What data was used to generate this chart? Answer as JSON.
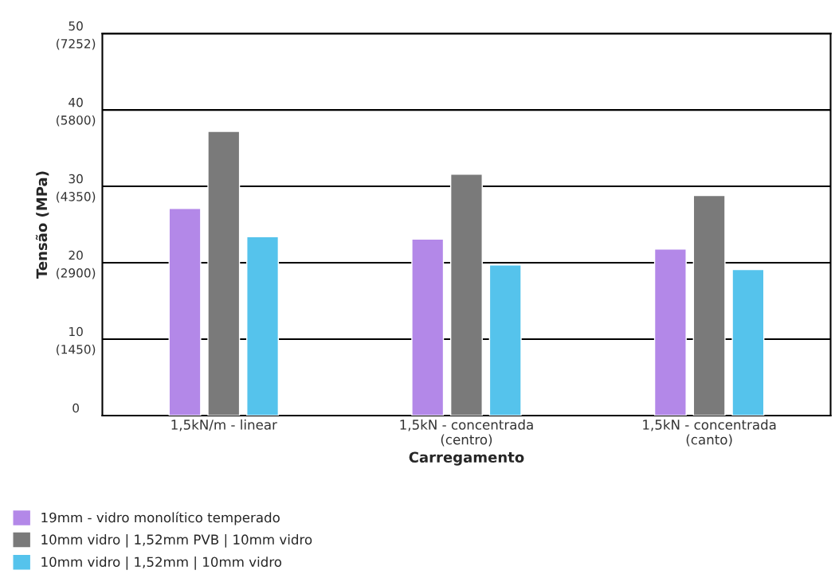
{
  "chart_data": {
    "type": "bar",
    "xlabel": "Carregamento",
    "ylabel": "Tensão (MPa)",
    "categories": [
      "1,5kN/m - linear",
      "1,5kN - concentrada\n(centro)",
      "1,5kN - concentrada\n(canto)"
    ],
    "series": [
      {
        "name": "19mm - vidro monolítico temperado",
        "color": "#b388e8",
        "values": [
          27.1,
          23.1,
          21.8
        ]
      },
      {
        "name": "10mm vidro | 1,52mm PVB | 10mm vidro",
        "color": "#7a7a7a",
        "values": [
          37.2,
          31.6,
          28.8
        ]
      },
      {
        "name": "10mm vidro | 1,52mm | 10mm vidro",
        "color": "#55c3ec",
        "values": [
          23.4,
          19.7,
          19.1
        ]
      }
    ],
    "ylim": [
      0,
      50
    ],
    "yticks": [
      0,
      10,
      20,
      30,
      40,
      50
    ],
    "y2lim": [
      0,
      7252
    ],
    "y2ticks": [
      {
        "value": 1450,
        "label": "(1450)"
      },
      {
        "value": 2900,
        "label": "(2900)"
      },
      {
        "value": 4350,
        "label": "(4350)"
      },
      {
        "value": 5800,
        "label": "(5800)"
      },
      {
        "value": 7252,
        "label": "(7252)"
      }
    ],
    "grid": "y",
    "legend": "bottom left"
  }
}
